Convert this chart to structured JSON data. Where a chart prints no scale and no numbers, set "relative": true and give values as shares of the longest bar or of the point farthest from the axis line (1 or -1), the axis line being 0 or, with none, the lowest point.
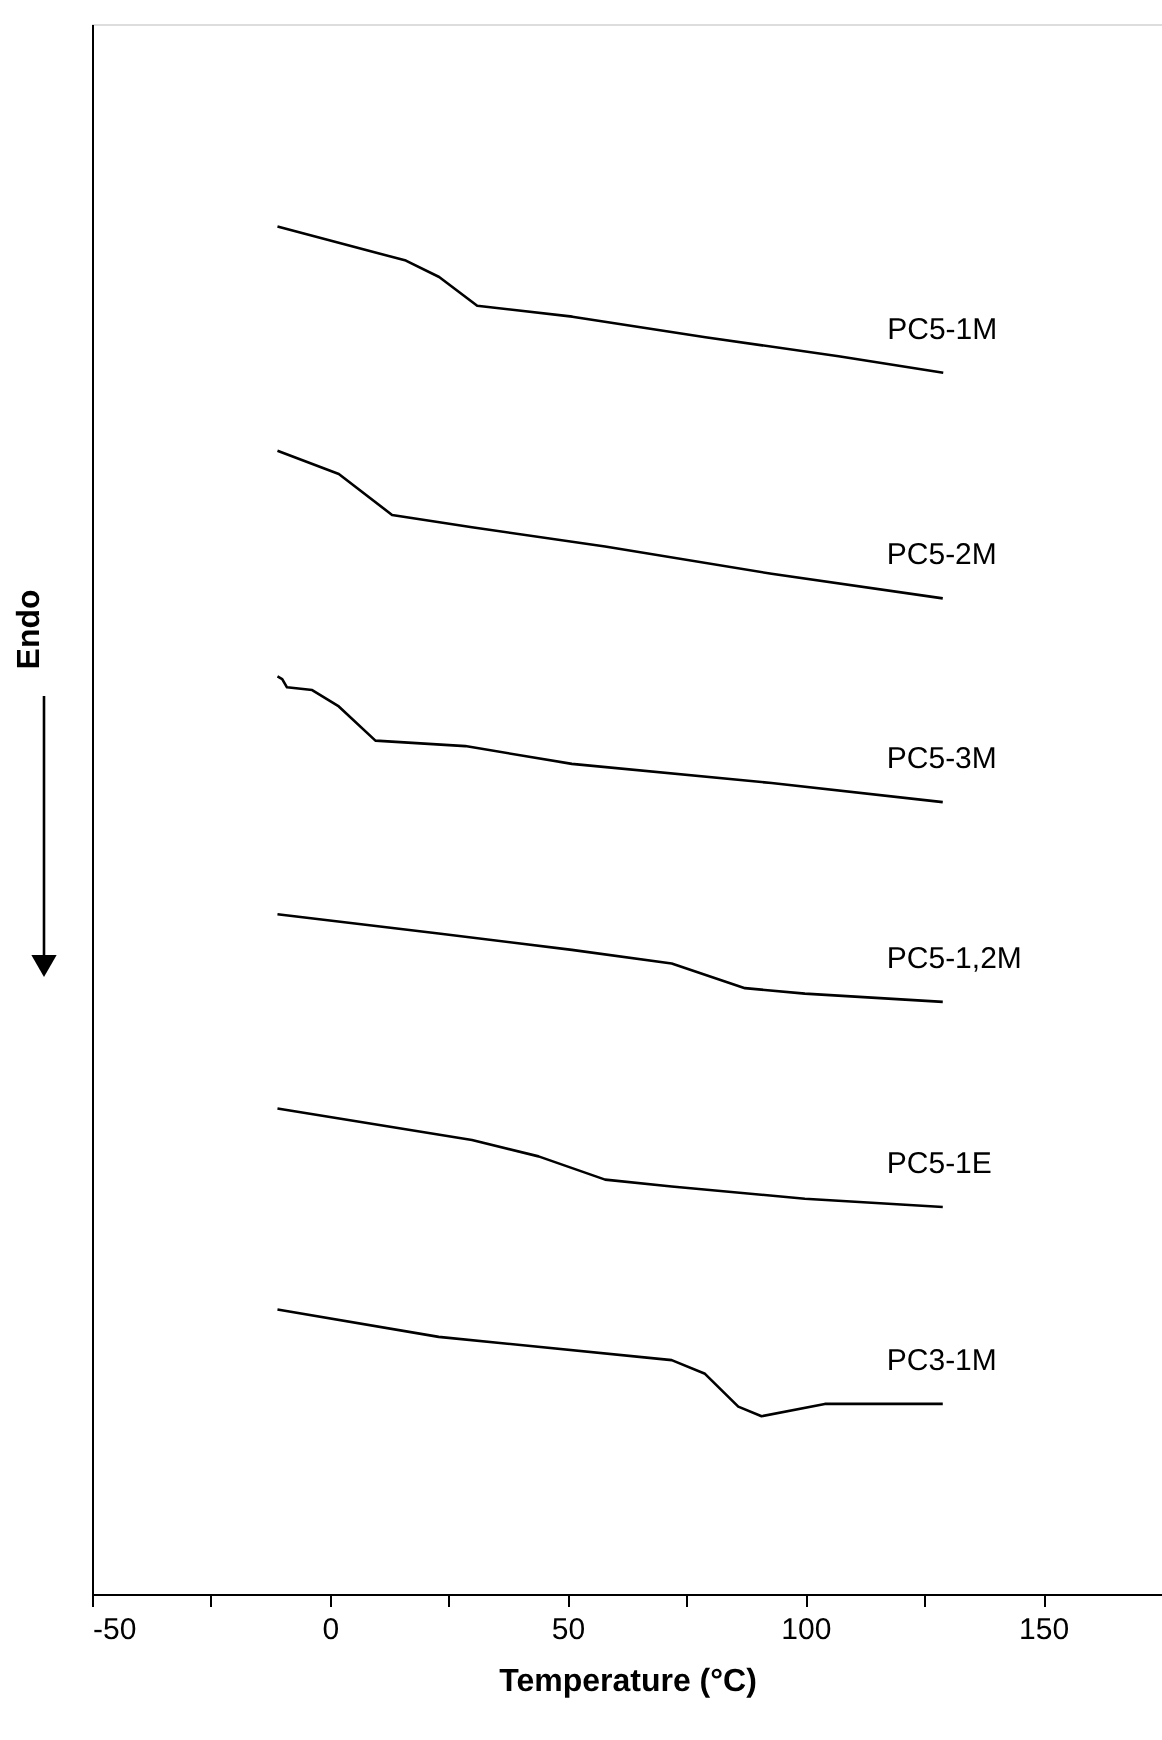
{
  "chart_data": {
    "type": "line",
    "relative": true,
    "xlabel": "Temperature (°C)",
    "ylabel": "Endo",
    "xlim": [
      -50,
      175
    ],
    "xticks": [
      -50,
      {
        "value": -25,
        "label": null
      },
      0,
      {
        "value": 25,
        "label": null
      },
      50,
      {
        "value": 75,
        "label": null
      },
      100,
      {
        "value": 125,
        "label": null
      },
      150
    ],
    "tick_labels": "x",
    "grid": false,
    "marker": "none",
    "line_style": "solid",
    "series": [
      {
        "name": "PC5-1M",
        "color": "#000000",
        "x": [
          -11,
          16,
          23,
          31,
          51,
          79,
          107,
          129
        ],
        "values": [
          1.0,
          0.975,
          0.963,
          0.942,
          0.934,
          0.919,
          0.905,
          0.893
        ]
      },
      {
        "name": "PC5-2M",
        "color": "#000000",
        "x": [
          -11,
          1.9,
          13.1,
          29.9,
          57.9,
          92.9,
          128.9
        ],
        "values": [
          0.836,
          0.819,
          0.789,
          0.78,
          0.766,
          0.746,
          0.728
        ]
      },
      {
        "name": "PC5-3M",
        "color": "#000000",
        "x": [
          -11,
          -10,
          -9,
          -3.7,
          1.9,
          9.6,
          28.5,
          50.9,
          92.9,
          128.9
        ],
        "values": [
          0.671,
          0.669,
          0.663,
          0.661,
          0.649,
          0.624,
          0.62,
          0.607,
          0.593,
          0.579
        ]
      },
      {
        "name": "PC5-1,2M",
        "color": "#000000",
        "x": [
          -11,
          22.9,
          50.9,
          71.9,
          87.3,
          99.9,
          128.9
        ],
        "values": [
          0.497,
          0.483,
          0.471,
          0.461,
          0.443,
          0.439,
          0.433
        ]
      },
      {
        "name": "PC5-1E",
        "color": "#000000",
        "x": [
          -11,
          29.9,
          43.9,
          57.9,
          71.9,
          99.9,
          128.9
        ],
        "values": [
          0.355,
          0.332,
          0.32,
          0.303,
          0.298,
          0.289,
          0.283
        ]
      },
      {
        "name": "PC3-1M",
        "color": "#000000",
        "x": [
          -11,
          22.9,
          71.9,
          78.9,
          85.9,
          90.8,
          104.1,
          128.9
        ],
        "values": [
          0.208,
          0.188,
          0.171,
          0.161,
          0.137,
          0.13,
          0.139,
          0.139
        ]
      }
    ]
  }
}
